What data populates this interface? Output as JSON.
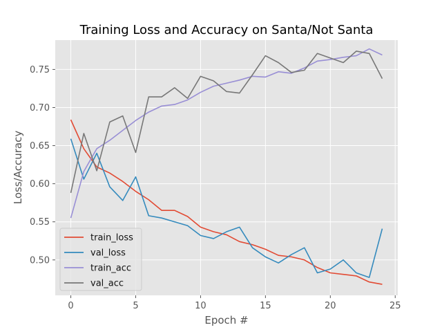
{
  "chart_data": {
    "type": "line",
    "title": "Training Loss and Accuracy on Santa/Not Santa",
    "xlabel": "Epoch #",
    "ylabel": "Loss/Accuracy",
    "xlim": [
      -1.2,
      25.2
    ],
    "ylim": [
      0.4535,
      0.7885
    ],
    "xticks": [
      0,
      5,
      10,
      15,
      20,
      25
    ],
    "yticks": [
      0.5,
      0.55,
      0.6,
      0.65,
      0.7,
      0.75
    ],
    "ytick_labels": [
      "0.50",
      "0.55",
      "0.60",
      "0.65",
      "0.70",
      "0.75"
    ],
    "grid": true,
    "legend_position": "lower-left",
    "x": [
      0,
      1,
      2,
      3,
      4,
      5,
      6,
      7,
      8,
      9,
      10,
      11,
      12,
      13,
      14,
      15,
      16,
      17,
      18,
      19,
      20,
      21,
      22,
      23,
      24
    ],
    "series": [
      {
        "name": "train_loss",
        "color": "#e24a33",
        "values": [
          0.684,
          0.646,
          0.622,
          0.614,
          0.603,
          0.59,
          0.579,
          0.565,
          0.565,
          0.557,
          0.543,
          0.537,
          0.533,
          0.524,
          0.52,
          0.514,
          0.506,
          0.504,
          0.5,
          0.49,
          0.483,
          0.481,
          0.479,
          0.471,
          0.468
        ]
      },
      {
        "name": "val_loss",
        "color": "#348abd",
        "values": [
          0.659,
          0.606,
          0.64,
          0.596,
          0.578,
          0.609,
          0.558,
          0.555,
          0.55,
          0.545,
          0.532,
          0.528,
          0.537,
          0.543,
          0.516,
          0.504,
          0.496,
          0.507,
          0.516,
          0.483,
          0.488,
          0.5,
          0.483,
          0.477,
          0.541
        ]
      },
      {
        "name": "train_acc",
        "color": "#988ed5",
        "values": [
          0.555,
          0.616,
          0.646,
          0.657,
          0.67,
          0.683,
          0.694,
          0.702,
          0.704,
          0.71,
          0.72,
          0.728,
          0.732,
          0.736,
          0.741,
          0.74,
          0.747,
          0.745,
          0.752,
          0.761,
          0.763,
          0.766,
          0.768,
          0.777,
          0.769
        ]
      },
      {
        "name": "val_acc",
        "color": "#777777",
        "values": [
          0.588,
          0.666,
          0.617,
          0.681,
          0.689,
          0.641,
          0.714,
          0.714,
          0.726,
          0.712,
          0.741,
          0.735,
          0.721,
          0.719,
          0.743,
          0.768,
          0.759,
          0.746,
          0.749,
          0.771,
          0.765,
          0.759,
          0.774,
          0.771,
          0.738
        ]
      }
    ]
  }
}
